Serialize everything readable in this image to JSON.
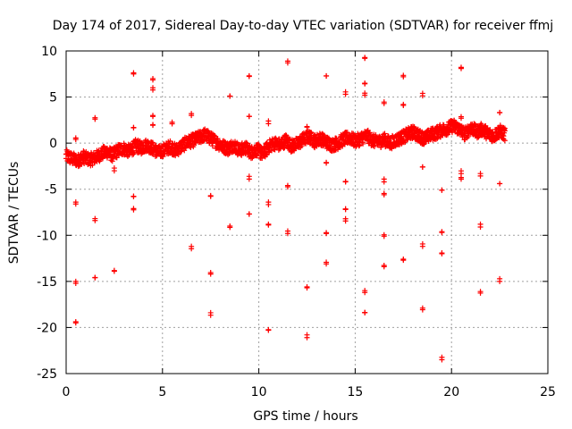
{
  "chart_data": {
    "type": "scatter",
    "title": "Day 174 of 2017, Sidereal Day-to-day VTEC variation (SDTVAR) for receiver ffmj",
    "xlabel": "GPS time / hours",
    "ylabel": "SDTVAR / TECUs",
    "xlim": [
      0,
      25
    ],
    "ylim": [
      -25,
      10
    ],
    "x_ticks": [
      0,
      5,
      10,
      15,
      20,
      25
    ],
    "y_ticks": [
      -25,
      -20,
      -15,
      -10,
      -5,
      0,
      5,
      10
    ],
    "x_tick_labels": [
      "0",
      "5",
      "10",
      "15",
      "20",
      "25"
    ],
    "y_tick_labels": [
      "-25",
      "-20",
      "-15",
      "-10",
      "-5",
      "0",
      "5",
      "10"
    ],
    "grid": true,
    "marker": "+",
    "series": [
      {
        "name": "SDTVAR",
        "color": "#ff0000",
        "main_band": [
          [
            0.0,
            -1.4
          ],
          [
            0.3,
            -1.7
          ],
          [
            0.6,
            -1.9
          ],
          [
            0.9,
            -1.5
          ],
          [
            1.2,
            -1.8
          ],
          [
            1.5,
            -1.6
          ],
          [
            1.8,
            -1.2
          ],
          [
            2.1,
            -0.9
          ],
          [
            2.4,
            -1.3
          ],
          [
            2.7,
            -0.8
          ],
          [
            3.0,
            -0.6
          ],
          [
            3.3,
            -0.9
          ],
          [
            3.6,
            -0.3
          ],
          [
            3.9,
            -0.5
          ],
          [
            4.2,
            -0.2
          ],
          [
            4.5,
            -0.6
          ],
          [
            4.8,
            -1.0
          ],
          [
            5.1,
            -0.7
          ],
          [
            5.4,
            -0.4
          ],
          [
            5.7,
            -0.8
          ],
          [
            6.0,
            -0.3
          ],
          [
            6.3,
            0.1
          ],
          [
            6.6,
            0.3
          ],
          [
            6.9,
            0.6
          ],
          [
            7.2,
            0.9
          ],
          [
            7.5,
            0.5
          ],
          [
            7.8,
            0.1
          ],
          [
            8.1,
            -0.3
          ],
          [
            8.4,
            -0.6
          ],
          [
            8.7,
            -0.2
          ],
          [
            9.0,
            -0.8
          ],
          [
            9.3,
            -0.5
          ],
          [
            9.6,
            -1.0
          ],
          [
            9.9,
            -0.7
          ],
          [
            10.2,
            -1.2
          ],
          [
            10.5,
            -0.4
          ],
          [
            10.8,
            0.0
          ],
          [
            11.1,
            -0.2
          ],
          [
            11.4,
            0.3
          ],
          [
            11.7,
            -0.3
          ],
          [
            12.0,
            -0.1
          ],
          [
            12.3,
            0.4
          ],
          [
            12.6,
            0.7
          ],
          [
            12.9,
            0.2
          ],
          [
            13.2,
            0.5
          ],
          [
            13.5,
            0.1
          ],
          [
            13.8,
            -0.2
          ],
          [
            14.1,
            0.0
          ],
          [
            14.4,
            0.4
          ],
          [
            14.7,
            0.6
          ],
          [
            15.0,
            0.2
          ],
          [
            15.3,
            0.5
          ],
          [
            15.6,
            0.8
          ],
          [
            15.9,
            0.3
          ],
          [
            16.2,
            0.1
          ],
          [
            16.5,
            0.4
          ],
          [
            16.8,
            0.0
          ],
          [
            17.1,
            0.3
          ],
          [
            17.4,
            0.6
          ],
          [
            17.7,
            0.9
          ],
          [
            18.0,
            1.2
          ],
          [
            18.3,
            0.8
          ],
          [
            18.6,
            0.5
          ],
          [
            18.9,
            0.9
          ],
          [
            19.2,
            1.1
          ],
          [
            19.5,
            1.4
          ],
          [
            19.8,
            1.6
          ],
          [
            20.1,
            1.9
          ],
          [
            20.4,
            1.5
          ],
          [
            20.7,
            1.0
          ],
          [
            21.0,
            1.7
          ],
          [
            21.3,
            1.2
          ],
          [
            21.6,
            1.5
          ],
          [
            21.9,
            1.0
          ],
          [
            22.2,
            0.8
          ],
          [
            22.5,
            1.3
          ],
          [
            22.8,
            0.9
          ]
        ],
        "outliers": [
          [
            0.5,
            0.4
          ],
          [
            0.5,
            -6.6
          ],
          [
            0.5,
            -15.0
          ],
          [
            0.5,
            -19.5
          ],
          [
            1.5,
            2.6
          ],
          [
            1.5,
            -8.4
          ],
          [
            1.5,
            -14.6
          ],
          [
            2.5,
            -3.0
          ],
          [
            2.5,
            -13.9
          ],
          [
            3.5,
            7.5
          ],
          [
            3.5,
            1.7
          ],
          [
            3.5,
            -5.8
          ],
          [
            3.5,
            -7.1
          ],
          [
            4.5,
            7.0
          ],
          [
            4.5,
            6.0
          ],
          [
            4.5,
            2.9
          ],
          [
            4.5,
            2.0
          ],
          [
            5.5,
            2.1
          ],
          [
            6.5,
            3.2
          ],
          [
            6.5,
            -11.2
          ],
          [
            7.5,
            -5.7
          ],
          [
            7.5,
            -14.2
          ],
          [
            7.5,
            -18.4
          ],
          [
            8.5,
            5.1
          ],
          [
            8.5,
            -9.0
          ],
          [
            9.5,
            7.3
          ],
          [
            9.5,
            2.9
          ],
          [
            9.5,
            -3.9
          ],
          [
            9.5,
            -7.7
          ],
          [
            10.5,
            2.4
          ],
          [
            10.5,
            -6.4
          ],
          [
            10.5,
            -8.8
          ],
          [
            10.5,
            -20.3
          ],
          [
            11.5,
            8.9
          ],
          [
            11.5,
            -4.6
          ],
          [
            11.5,
            -9.8
          ],
          [
            12.5,
            1.8
          ],
          [
            12.5,
            -15.7
          ],
          [
            12.5,
            -20.8
          ],
          [
            13.5,
            7.3
          ],
          [
            13.5,
            -2.1
          ],
          [
            13.5,
            -9.8
          ],
          [
            13.5,
            -13.1
          ],
          [
            14.5,
            5.3
          ],
          [
            14.5,
            -4.2
          ],
          [
            14.5,
            -7.2
          ],
          [
            14.5,
            -8.2
          ],
          [
            15.5,
            9.2
          ],
          [
            15.5,
            6.5
          ],
          [
            15.5,
            5.2
          ],
          [
            15.5,
            -16.0
          ],
          [
            15.5,
            -18.4
          ],
          [
            16.5,
            4.3
          ],
          [
            16.5,
            -4.2
          ],
          [
            16.5,
            -5.6
          ],
          [
            16.5,
            -10.1
          ],
          [
            16.5,
            -13.4
          ],
          [
            17.5,
            7.2
          ],
          [
            17.5,
            4.2
          ],
          [
            17.5,
            -12.7
          ],
          [
            18.5,
            5.4
          ],
          [
            18.5,
            -2.6
          ],
          [
            18.5,
            -11.2
          ],
          [
            18.5,
            -17.9
          ],
          [
            19.5,
            -5.1
          ],
          [
            19.5,
            -9.7
          ],
          [
            19.5,
            -12.0
          ],
          [
            19.5,
            -23.5
          ],
          [
            20.5,
            8.1
          ],
          [
            20.5,
            2.7
          ],
          [
            20.5,
            -3.3
          ],
          [
            20.5,
            -3.9
          ],
          [
            21.5,
            -3.3
          ],
          [
            21.5,
            -8.8
          ],
          [
            21.5,
            -16.1
          ],
          [
            22.5,
            3.3
          ],
          [
            22.5,
            -4.4
          ],
          [
            22.5,
            -15.0
          ]
        ]
      }
    ]
  }
}
